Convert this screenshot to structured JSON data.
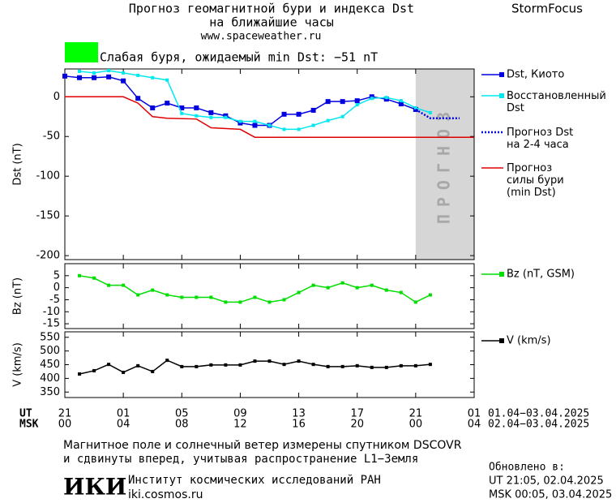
{
  "header": {
    "title": "Прогноз геомагнитной бури и индекса Dst",
    "subtitle": "на ближайшие часы",
    "site": "www.spaceweather.ru",
    "brand": "StormFocus",
    "status": {
      "color": "#00ff00",
      "text": "Слабая буря, ожидаемый min Dst: −51 nT"
    }
  },
  "time_axis": {
    "ut_label": "UT",
    "msk_label": "MSK",
    "ut_ticks": [
      {
        "value": 0,
        "label": "21"
      },
      {
        "value": 4,
        "label": "01"
      },
      {
        "value": 8,
        "label": "05"
      },
      {
        "value": 12,
        "label": "09"
      },
      {
        "value": 16,
        "label": "13"
      },
      {
        "value": 20,
        "label": "17"
      },
      {
        "value": 24,
        "label": "21"
      },
      {
        "value": 28,
        "label": "01"
      }
    ],
    "msk_ticks": [
      {
        "value": 0,
        "label": "00"
      },
      {
        "value": 4,
        "label": "04"
      },
      {
        "value": 8,
        "label": "08"
      },
      {
        "value": 12,
        "label": "12"
      },
      {
        "value": 16,
        "label": "16"
      },
      {
        "value": 20,
        "label": "20"
      },
      {
        "value": 24,
        "label": "00"
      },
      {
        "value": 28,
        "label": "04"
      }
    ],
    "ut_range": "01.04−03.04.2025",
    "msk_range": "02.04−03.04.2025"
  },
  "chart_data": [
    {
      "type": "line",
      "ylabel": "Dst (nT)",
      "xlim": [
        0,
        28
      ],
      "ylim": [
        -205,
        35
      ],
      "yticks": [
        0,
        -50,
        -100,
        -150,
        -200
      ],
      "forecast": {
        "label": "ПРОГНОЗ",
        "xrange": [
          24,
          28
        ]
      },
      "series": [
        {
          "name": "Dst, Киото",
          "color": "#0000e0",
          "marker": "square",
          "dash": "solid",
          "x": [
            0,
            1,
            2,
            3,
            4,
            5,
            6,
            7,
            8,
            9,
            10,
            11,
            12,
            13,
            14,
            15,
            16,
            17,
            18,
            19,
            20,
            21,
            22,
            23,
            24
          ],
          "values": [
            26,
            24,
            24,
            25,
            20,
            -2,
            -14,
            -8,
            -14,
            -14,
            -20,
            -24,
            -33,
            -36,
            -36,
            -22,
            -22,
            -17,
            -6,
            -6,
            -5,
            0,
            -3,
            -9,
            -16
          ]
        },
        {
          "name": "Восстановленный\nDst",
          "color": "#00e8f0",
          "marker": "square",
          "dash": "solid",
          "x": [
            1,
            2,
            3,
            4,
            5,
            6,
            7,
            8,
            9,
            10,
            11,
            12,
            13,
            14,
            15,
            16,
            17,
            18,
            19,
            20,
            21,
            22,
            23,
            24,
            25
          ],
          "values": [
            32,
            30,
            33,
            30,
            27,
            24,
            21,
            -21,
            -24,
            -26,
            -26,
            -31,
            -31,
            -36,
            -41,
            -41,
            -36,
            -30,
            -25,
            -10,
            -2,
            -1,
            -5,
            -14,
            -20
          ]
        },
        {
          "name": "Прогноз Dst\nна 2-4 часа",
          "color": "#0000e0",
          "marker": "none",
          "dash": "dotted",
          "x": [
            24,
            25,
            27
          ],
          "values": [
            -16,
            -27,
            -27
          ]
        },
        {
          "name": "Прогноз\nсилы бури\n(min Dst)",
          "color": "#e00000",
          "marker": "none",
          "dash": "solid",
          "x": [
            0,
            4,
            5,
            6,
            7,
            9,
            10,
            12,
            13,
            28
          ],
          "values": [
            0,
            0,
            -8,
            -25,
            -27,
            -28,
            -39,
            -41,
            -51,
            -51
          ]
        }
      ]
    },
    {
      "type": "line",
      "ylabel": "Bz (nT)",
      "xlim": [
        0,
        28
      ],
      "ylim": [
        -17,
        10
      ],
      "yticks": [
        5,
        0,
        -5,
        -10,
        -15
      ],
      "series": [
        {
          "name": "Bz (nT, GSM)",
          "color": "#00dd00",
          "marker": "square",
          "dash": "solid",
          "x": [
            1,
            2,
            3,
            4,
            5,
            6,
            7,
            8,
            9,
            10,
            11,
            12,
            13,
            14,
            15,
            16,
            17,
            18,
            19,
            20,
            21,
            22,
            23,
            24,
            25
          ],
          "values": [
            5,
            4,
            1,
            1,
            -3,
            -1,
            -3,
            -4,
            -4,
            -4,
            -6,
            -6,
            -4,
            -6,
            -5,
            -2,
            1,
            0,
            2,
            0,
            1,
            -1,
            -2,
            -6,
            -3
          ]
        }
      ]
    },
    {
      "type": "line",
      "ylabel": "V (km/s)",
      "xlim": [
        0,
        28
      ],
      "ylim": [
        330,
        570
      ],
      "yticks": [
        550,
        500,
        450,
        400,
        350
      ],
      "series": [
        {
          "name": "V (km/s)",
          "color": "#000000",
          "marker": "square",
          "dash": "solid",
          "x": [
            1,
            2,
            3,
            4,
            5,
            6,
            7,
            8,
            9,
            10,
            11,
            12,
            13,
            14,
            15,
            16,
            17,
            18,
            19,
            20,
            21,
            22,
            23,
            24,
            25
          ],
          "values": [
            416,
            428,
            451,
            422,
            446,
            425,
            466,
            443,
            443,
            449,
            449,
            449,
            463,
            463,
            451,
            463,
            451,
            443,
            443,
            446,
            440,
            440,
            446,
            446,
            451
          ]
        }
      ]
    }
  ],
  "footer": {
    "note1": "Магнитное поле и солнечный ветер измерены спутником DSCOVR",
    "note2": "и сдвинуты вперед, учитывая распространение L1−Земля",
    "logo": "ИКИ",
    "institute": "Институт космических исследований РАН",
    "url": "iki.cosmos.ru",
    "updated_label": "Обновлено в:",
    "updated_ut": "UT   21:05, 02.04.2025",
    "updated_msk": "MSK 00:05, 03.04.2025"
  }
}
